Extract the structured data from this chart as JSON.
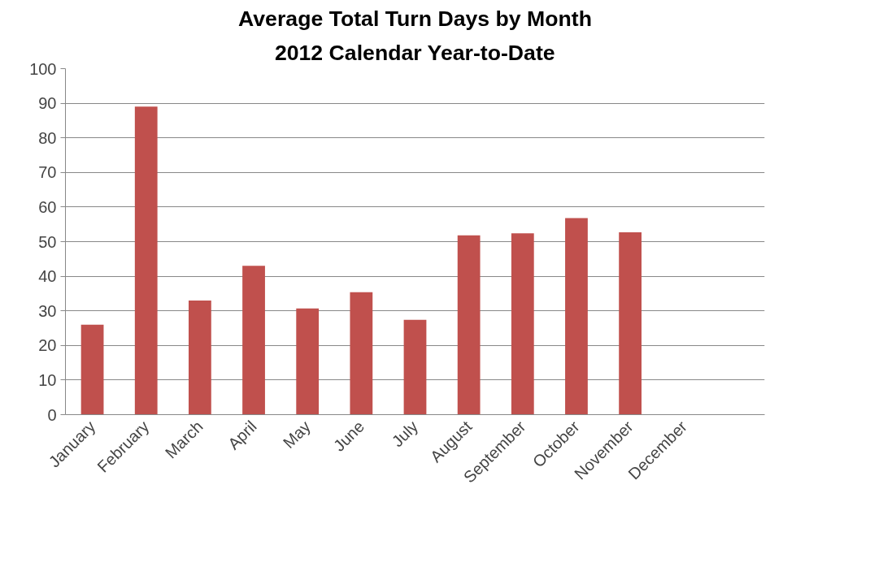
{
  "chart_data": {
    "type": "bar",
    "title": "Average Total Turn Days by Month",
    "subtitle": "2012 Calendar Year-to-Date",
    "categories": [
      "January",
      "February",
      "March",
      "April",
      "May",
      "June",
      "July",
      "August",
      "September",
      "October",
      "November",
      "December",
      null
    ],
    "values": [
      26,
      89,
      33,
      43,
      30.7,
      35.4,
      27.4,
      51.8,
      52.4,
      56.8,
      52.7,
      null,
      null
    ],
    "color": "#c0504d",
    "ylim": [
      0,
      100
    ],
    "yticks": [
      0,
      10,
      20,
      30,
      40,
      50,
      60,
      70,
      80,
      90,
      100
    ],
    "grid": "y"
  }
}
